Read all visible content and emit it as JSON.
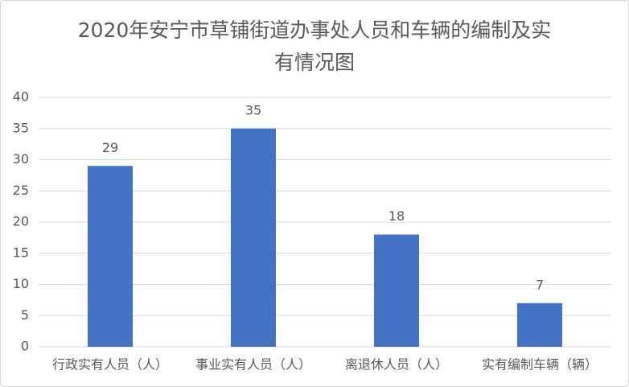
{
  "chart_data": {
    "type": "bar",
    "title": "2020年安宁市草铺街道办事处人员和车辆的编制及实有情况图",
    "categories": [
      "行政实有人员（人）",
      "事业实有人员（人）",
      "离退休人员（人）",
      "实有编制车辆（辆）"
    ],
    "values": [
      29,
      35,
      18,
      7
    ],
    "color": "#4472c4",
    "ylim": [
      0,
      40
    ],
    "yticks": [
      0,
      5,
      10,
      15,
      20,
      25,
      30,
      35,
      40
    ],
    "grid": true
  }
}
